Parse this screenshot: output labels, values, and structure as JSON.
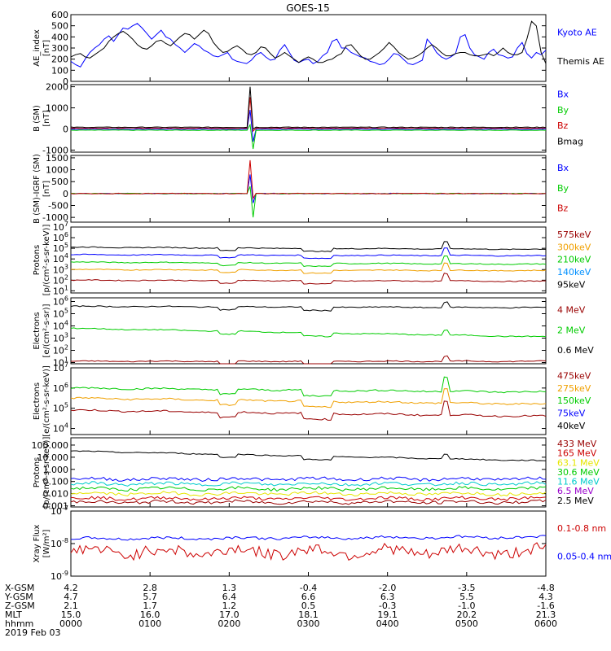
{
  "page": {
    "title": "GOES-15"
  },
  "colors": {
    "black": "#000000",
    "blue": "#0000ff",
    "green": "#00cc00",
    "red": "#cc0000",
    "orange": "#f0a000",
    "ltblue": "#0090ff",
    "cyan": "#00cccc",
    "brown": "#990000",
    "yellow": "#e6e600",
    "purple": "#9900cc"
  },
  "chart_data": [
    {
      "id": "ae",
      "type": "line",
      "ylabel": "AE_index\n[nT]",
      "yticks": [
        "600",
        "500",
        "400",
        "300",
        "200",
        "100",
        "0"
      ],
      "ylim": [
        0,
        600
      ],
      "legend": [
        {
          "label": "Kyoto AE",
          "color": "blue"
        },
        {
          "label": "Themis AE",
          "color": "black"
        }
      ],
      "series": [
        {
          "name": "Kyoto AE",
          "color": "blue",
          "y": [
            180,
            150,
            130,
            200,
            260,
            300,
            330,
            380,
            410,
            360,
            420,
            480,
            470,
            500,
            520,
            480,
            430,
            380,
            420,
            460,
            400,
            380,
            330,
            300,
            260,
            300,
            340,
            320,
            280,
            260,
            230,
            220,
            240,
            260,
            200,
            180,
            170,
            160,
            190,
            240,
            260,
            220,
            190,
            200,
            280,
            330,
            260,
            190,
            170,
            190,
            200,
            160,
            180,
            230,
            260,
            360,
            380,
            300,
            300,
            260,
            240,
            220,
            210,
            180,
            170,
            150,
            160,
            200,
            250,
            240,
            200,
            160,
            150,
            170,
            190,
            380,
            330,
            260,
            220,
            200,
            220,
            250,
            400,
            420,
            300,
            240,
            220,
            200,
            260,
            290,
            240,
            230,
            210,
            220,
            300,
            350,
            250,
            210,
            260,
            240,
            280
          ]
        },
        {
          "name": "Themis AE",
          "color": "black",
          "y": [
            220,
            240,
            250,
            220,
            210,
            240,
            270,
            300,
            360,
            400,
            430,
            450,
            420,
            380,
            330,
            300,
            290,
            320,
            360,
            370,
            340,
            320,
            360,
            400,
            430,
            420,
            380,
            420,
            460,
            430,
            350,
            300,
            260,
            270,
            300,
            320,
            290,
            250,
            240,
            260,
            310,
            300,
            250,
            210,
            230,
            260,
            230,
            200,
            170,
            200,
            220,
            200,
            170,
            170,
            190,
            200,
            230,
            250,
            320,
            330,
            280,
            230,
            200,
            200,
            230,
            260,
            300,
            350,
            310,
            260,
            230,
            200,
            210,
            230,
            260,
            300,
            330,
            300,
            260,
            230,
            230,
            250,
            260,
            260,
            240,
            230,
            230,
            240,
            250,
            230,
            260,
            300,
            260,
            240,
            240,
            260,
            380,
            540,
            500,
            260,
            160
          ]
        }
      ]
    },
    {
      "id": "bsm",
      "type": "line",
      "ylabel": "B (SM)\n[nT]",
      "yticks": [
        "2000",
        "1000",
        "0",
        "-1000"
      ],
      "ylim": [
        -1100,
        2100
      ],
      "legend": [
        {
          "label": "Bx",
          "color": "blue"
        },
        {
          "label": "By",
          "color": "green"
        },
        {
          "label": "Bz",
          "color": "red"
        },
        {
          "label": "Bmag",
          "color": "black"
        }
      ],
      "series": [
        {
          "name": "Bx",
          "color": "blue",
          "base": -10,
          "spike": [
            -600,
            900
          ]
        },
        {
          "name": "By",
          "color": "green",
          "base": -60,
          "spike": [
            -950,
            200
          ]
        },
        {
          "name": "Bz",
          "color": "red",
          "base": 40,
          "spike": [
            -100,
            1500
          ]
        },
        {
          "name": "Bmag",
          "color": "black",
          "base": 80,
          "spike": [
            0,
            2000
          ]
        }
      ]
    },
    {
      "id": "bsmigrf",
      "type": "line",
      "ylabel": "B (SM)-IGRF (SM)\n[nT]",
      "yticks": [
        "1500",
        "1000",
        "500",
        "0",
        "-500",
        "-1000"
      ],
      "ylim": [
        -1200,
        1600
      ],
      "legend": [
        {
          "label": "Bx",
          "color": "blue"
        },
        {
          "label": "By",
          "color": "green"
        },
        {
          "label": "Bz",
          "color": "red"
        }
      ],
      "series": [
        {
          "name": "Bx",
          "color": "blue",
          "base": 0,
          "spike": [
            -400,
            800
          ]
        },
        {
          "name": "By",
          "color": "green",
          "base": 0,
          "spike": [
            -1000,
            300
          ]
        },
        {
          "name": "Bz",
          "color": "red",
          "base": 0,
          "spike": [
            -200,
            1400
          ]
        }
      ]
    },
    {
      "id": "protons_kev",
      "type": "line",
      "log": true,
      "ylabel": "Protons\n[p/(cm²-s-sr-keV)]",
      "yexp": [
        7,
        6,
        5,
        4,
        3,
        2,
        1
      ],
      "ylim_exp": [
        0.8,
        7
      ],
      "legend": [
        {
          "label": "575keV",
          "color": "brown"
        },
        {
          "label": "300keV",
          "color": "orange"
        },
        {
          "label": "210keV",
          "color": "green"
        },
        {
          "label": "140keV",
          "color": "ltblue"
        },
        {
          "label": "95keV",
          "color": "black"
        }
      ],
      "series": [
        {
          "name": "95keV",
          "color": "black",
          "level": 5.1,
          "end": 4.9
        },
        {
          "name": "140keV",
          "color": "blue",
          "level": 4.4,
          "end": 4.3
        },
        {
          "name": "210keV",
          "color": "green",
          "level": 3.7,
          "end": 3.5
        },
        {
          "name": "300keV",
          "color": "orange",
          "level": 3.0,
          "end": 2.9
        },
        {
          "name": "575keV",
          "color": "brown",
          "level": 2.0,
          "end": 1.9
        }
      ]
    },
    {
      "id": "electrons_mev",
      "type": "line",
      "log": true,
      "ylabel": "Electrons\n[e/(cm²-s-sr)]",
      "yexp": [
        6,
        5,
        4,
        3,
        2,
        1
      ],
      "ylim_exp": [
        0.9,
        6.3
      ],
      "legend": [
        {
          "label": "4 MeV",
          "color": "brown"
        },
        {
          "label": "2 MeV",
          "color": "green"
        },
        {
          "label": "0.6 MeV",
          "color": "black"
        }
      ],
      "series": [
        {
          "name": "0.6 MeV",
          "color": "black",
          "level": 5.6,
          "end": 5.5
        },
        {
          "name": "2 MeV",
          "color": "green",
          "level": 3.8,
          "end": 3.1
        },
        {
          "name": "4 MeV",
          "color": "brown",
          "level": 1.1,
          "end": 1.1
        }
      ]
    },
    {
      "id": "electrons_kev",
      "type": "line",
      "log": true,
      "ylabel": "Electrons\n[e/(cm²-s-sr-keV)]",
      "yexp": [
        7,
        6,
        5,
        4
      ],
      "ylim_exp": [
        3.7,
        7
      ],
      "legend": [
        {
          "label": "475keV",
          "color": "brown"
        },
        {
          "label": "275keV",
          "color": "orange"
        },
        {
          "label": "150keV",
          "color": "green"
        },
        {
          "label": "75keV",
          "color": "blue"
        },
        {
          "label": "40keV",
          "color": "black"
        }
      ],
      "series": [
        {
          "name": "150keV",
          "color": "green",
          "level": 6.0,
          "end": 5.8
        },
        {
          "name": "275keV",
          "color": "orange",
          "level": 5.5,
          "end": 5.2
        },
        {
          "name": "475keV",
          "color": "brown",
          "level": 4.9,
          "end": 4.6
        }
      ]
    },
    {
      "id": "protons_mev",
      "type": "line",
      "log": true,
      "ylabel": "Protons\n[p/(cm²-s-sr-keV)]",
      "yticks_log": [
        "100.000",
        "10.000",
        "1.000",
        "0.100",
        "0.010",
        "0.001"
      ],
      "yexp": [
        2,
        1,
        0,
        -1,
        -2,
        -3
      ],
      "ylim_exp": [
        -3.1,
        2.6
      ],
      "legend": [
        {
          "label": "433 MeV",
          "color": "brown"
        },
        {
          "label": "165 MeV",
          "color": "red"
        },
        {
          "label": "63.1 MeV",
          "color": "yellow"
        },
        {
          "label": "30.6 MeV",
          "color": "green"
        },
        {
          "label": "11.6 MeV",
          "color": "cyan"
        },
        {
          "label": "6.5 MeV",
          "color": "purple"
        },
        {
          "label": "2.5 MeV",
          "color": "black"
        }
      ],
      "series": [
        {
          "name": "2.5 MeV",
          "color": "black",
          "level": 1.5,
          "end": 0.7
        },
        {
          "name": "6.5 MeV",
          "color": "blue",
          "level": -0.8,
          "end": -0.8
        },
        {
          "name": "11.6 MeV",
          "color": "cyan",
          "level": -1.2,
          "end": -1.2
        },
        {
          "name": "30.6 MeV",
          "color": "green",
          "level": -1.6,
          "end": -1.6
        },
        {
          "name": "63.1 MeV",
          "color": "yellow",
          "level": -2.0,
          "end": -2.0
        },
        {
          "name": "165 MeV",
          "color": "red",
          "level": -2.4,
          "end": -2.4
        },
        {
          "name": "433 MeV",
          "color": "brown",
          "level": -2.7,
          "end": -2.7
        }
      ]
    },
    {
      "id": "xray",
      "type": "line",
      "log": true,
      "ylabel": "Xray Flux\n[W/m²]",
      "yexp": [
        -7,
        -8,
        -9
      ],
      "ylim_exp": [
        -9,
        -7
      ],
      "legend": [
        {
          "label": "0.1-0.8 nm",
          "color": "red"
        },
        {
          "label": "0.05-0.4 nm",
          "color": "blue"
        }
      ],
      "series": [
        {
          "name": "0.1-0.8 nm",
          "color": "blue",
          "level": -7.85,
          "end": -7.8
        },
        {
          "name": "0.05-0.4 nm",
          "color": "red",
          "level": -8.25,
          "end": -8.25
        }
      ]
    }
  ],
  "xaxis": {
    "rows": [
      {
        "label": "X-GSM",
        "values": [
          "4.2",
          "2.8",
          "1.3",
          "-0.4",
          "-2.0",
          "-3.5",
          "-4.8"
        ]
      },
      {
        "label": "Y-GSM",
        "values": [
          "4.7",
          "5.7",
          "6.4",
          "6.6",
          "6.3",
          "5.5",
          "4.3"
        ]
      },
      {
        "label": "Z-GSM",
        "values": [
          "2.1",
          "1.7",
          "1.2",
          "0.5",
          "-0.3",
          "-1.0",
          "-1.6"
        ]
      },
      {
        "label": "MLT",
        "values": [
          "15.0",
          "16.0",
          "17.0",
          "18.1",
          "19.1",
          "20.2",
          "21.3"
        ]
      },
      {
        "label": "hhmm",
        "values": [
          "0000",
          "0100",
          "0200",
          "0300",
          "0400",
          "0500",
          "0600"
        ]
      }
    ],
    "date": "2019 Feb 03"
  }
}
